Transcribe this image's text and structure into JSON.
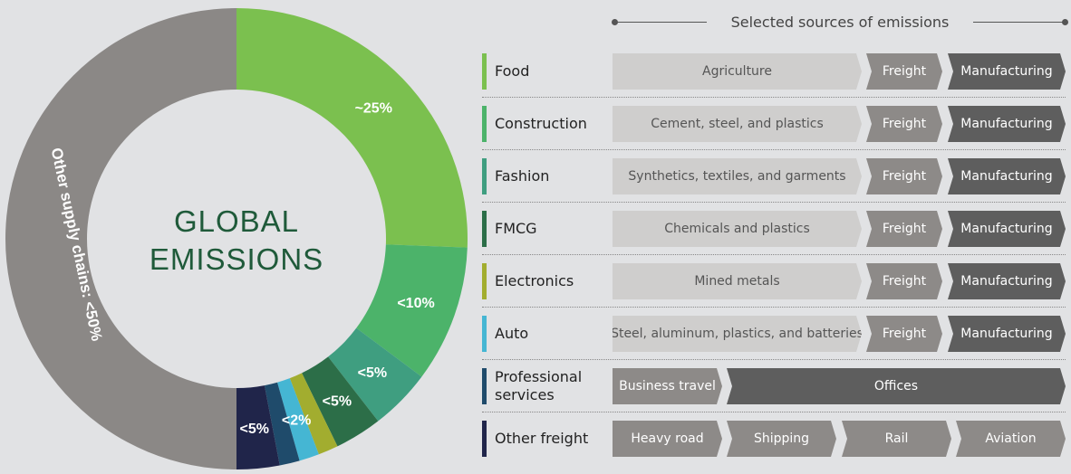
{
  "header": {
    "title": "Selected sources of emissions"
  },
  "donut": {
    "center_line1": "GLOBAL",
    "center_line2": "EMISSIONS",
    "center_color": "#1f5a3a",
    "segments": [
      {
        "name": "Food",
        "share": 25.6,
        "label": "~25%",
        "color": "#7bc04f"
      },
      {
        "name": "Construction",
        "share": 9.6,
        "label": "<10%",
        "color": "#4cb36a"
      },
      {
        "name": "Fashion",
        "share": 4.3,
        "label": "<5%",
        "color": "#3f9e80"
      },
      {
        "name": "FMCG",
        "share": 3.3,
        "label": "<5%",
        "color": "#2c6e48"
      },
      {
        "name": "Electronics",
        "share": 1.4,
        "label": "",
        "color": "#a2ad2f"
      },
      {
        "name": "Auto",
        "share": 1.4,
        "label": "<2%",
        "color": "#45b6d3"
      },
      {
        "name": "Professional services",
        "share": 1.4,
        "label": "",
        "color": "#1f4b6b"
      },
      {
        "name": "Other freight",
        "share": 3.0,
        "label": "<5%",
        "color": "#20254a"
      },
      {
        "name": "Other supply chains",
        "share": 50.0,
        "label": "Other supply chains: <50%",
        "color": "#8b8886"
      }
    ]
  },
  "rows": [
    {
      "label": "Food",
      "color": "#7bc04f",
      "type": "std",
      "items": [
        "Agriculture",
        "Freight",
        "Manufacturing"
      ]
    },
    {
      "label": "Construction",
      "color": "#4cb36a",
      "type": "std",
      "items": [
        "Cement, steel, and plastics",
        "Freight",
        "Manufacturing"
      ]
    },
    {
      "label": "Fashion",
      "color": "#3f9e80",
      "type": "std",
      "items": [
        "Synthetics, textiles, and garments",
        "Freight",
        "Manufacturing"
      ]
    },
    {
      "label": "FMCG",
      "color": "#2c6e48",
      "type": "std",
      "items": [
        "Chemicals and plastics",
        "Freight",
        "Manufacturing"
      ]
    },
    {
      "label": "Electronics",
      "color": "#a2ad2f",
      "type": "std",
      "items": [
        "Mined metals",
        "Freight",
        "Manufacturing"
      ]
    },
    {
      "label": "Auto",
      "color": "#45b6d3",
      "type": "std",
      "items": [
        "Steel, aluminum, plastics, and batteries",
        "Freight",
        "Manufacturing"
      ]
    },
    {
      "label": "Professional services",
      "color": "#1f4b6b",
      "type": "prof",
      "items": [
        "Business travel",
        "Offices"
      ]
    },
    {
      "label": "Other freight",
      "color": "#20254a",
      "type": "freight",
      "items": [
        "Heavy road",
        "Shipping",
        "Rail",
        "Aviation"
      ]
    }
  ]
}
